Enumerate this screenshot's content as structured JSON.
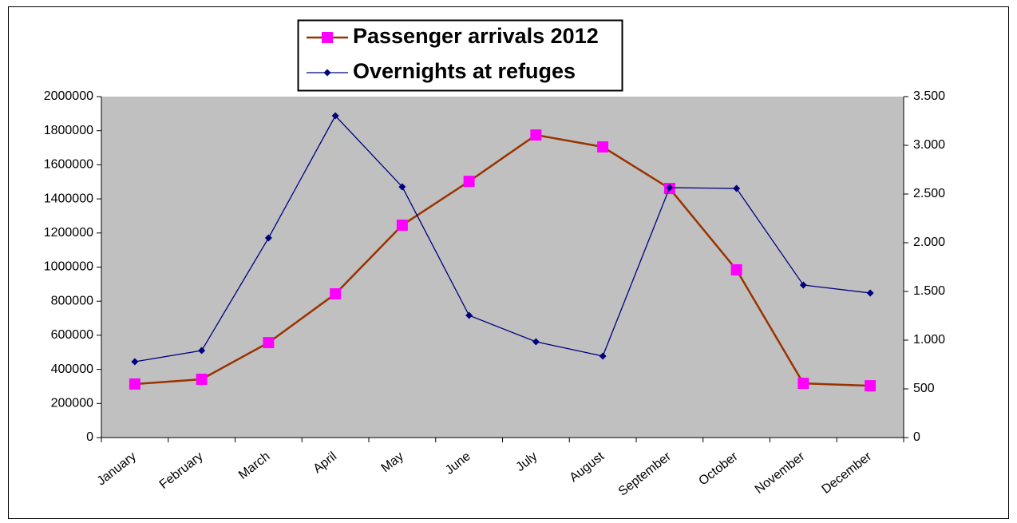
{
  "chart_data": {
    "type": "line",
    "categories": [
      "January",
      "February",
      "March",
      "April",
      "May",
      "June",
      "July",
      "August",
      "September",
      "October",
      "November",
      "December"
    ],
    "series": [
      {
        "name": "Passenger arrivals 2012",
        "color": "#993300",
        "marker_color": "#ff00ff",
        "marker": "square",
        "values": [
          314000,
          342000,
          557000,
          843000,
          1246000,
          1503000,
          1775000,
          1705000,
          1461000,
          984000,
          318000,
          304000
        ]
      },
      {
        "name": "Overnights at refuges",
        "color": "#000080",
        "marker_color": "#000080",
        "marker": "diamond",
        "axis": "y2",
        "values": [
          779,
          893,
          2049,
          3303,
          2574,
          1254,
          984,
          836,
          2566,
          2557,
          1566,
          1484
        ]
      }
    ],
    "ylim": [
      0,
      2000000
    ],
    "yticks": [
      0,
      200000,
      400000,
      600000,
      800000,
      1000000,
      1200000,
      1400000,
      1600000,
      1800000,
      2000000
    ],
    "y2lim": [
      0,
      3500
    ],
    "y2ticks": [
      0,
      {
        "value": 500,
        "label": "500"
      },
      {
        "value": 1000,
        "label": "1.000"
      },
      {
        "value": 1500,
        "label": "1.500"
      },
      {
        "value": 2000,
        "label": "2.000"
      },
      {
        "value": 2500,
        "label": "2.500"
      },
      {
        "value": 3000,
        "label": "3.000"
      },
      {
        "value": 3500,
        "label": "3.500"
      }
    ],
    "plot_background": "#c0c0c0",
    "legend": "top"
  }
}
